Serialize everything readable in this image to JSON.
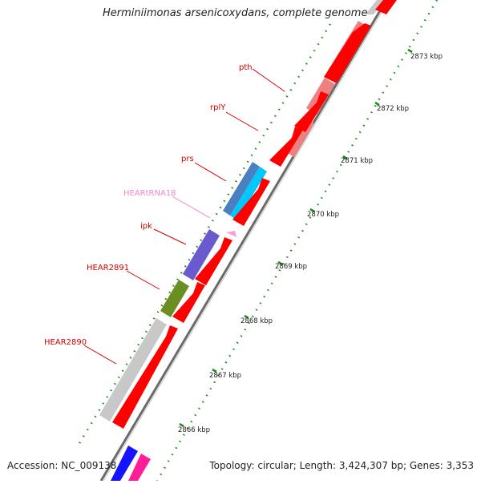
{
  "map": {
    "title": "Herminiimonas arsenicoxydans, complete genome",
    "accession": "Accession: NC_009138",
    "topology": "Topology: circular; Length: 3,424,307 bp; Genes: 3,353"
  },
  "gene_labels": [
    {
      "name": "pth",
      "kind": "gene"
    },
    {
      "name": "rplY",
      "kind": "gene"
    },
    {
      "name": "prs",
      "kind": "gene"
    },
    {
      "name": "HEARtRNA18",
      "kind": "rna"
    },
    {
      "name": "ipk",
      "kind": "gene"
    },
    {
      "name": "HEAR2891",
      "kind": "gene"
    },
    {
      "name": "HEAR2890",
      "kind": "gene"
    }
  ],
  "scale_labels": [
    "2873 kbp",
    "2872 kbp",
    "2871 kbp",
    "2870 kbp",
    "2869 kbp",
    "2868 kbp",
    "2867 kbp",
    "2866 kbp"
  ],
  "colors": {
    "cds_red": "#ff0000",
    "cds_pink": "#f08080",
    "grey_feature": "#c8c8c8",
    "blue_feature": "#4a7fc0",
    "cyan_feature": "#00c8ff",
    "purple_feature": "#6a5acd",
    "olive_feature": "#6b8e23",
    "trna_pink": "#ff9ed8",
    "backbone": "#707070",
    "tick_green": "#1a8a1a",
    "label_red": "#d40000"
  }
}
